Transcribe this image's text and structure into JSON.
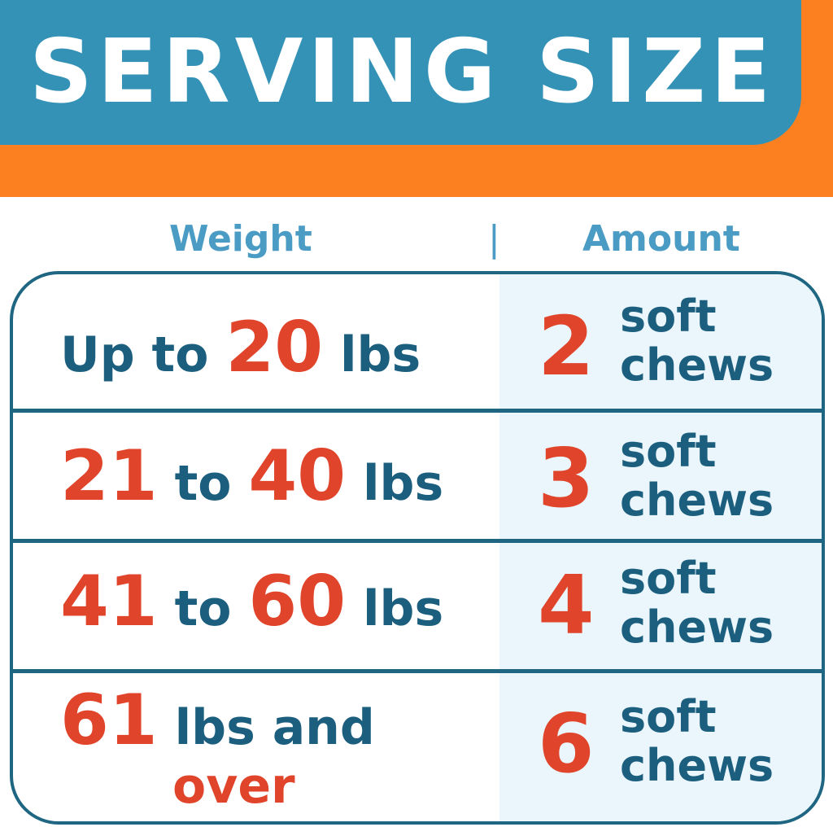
{
  "header": {
    "title": "SERVING SIZE"
  },
  "columns": {
    "weight": "Weight",
    "separator": "|",
    "amount": "Amount"
  },
  "rows": [
    {
      "prefix": "Up to",
      "from": "",
      "to_word": "",
      "to": "20",
      "suffix": "lbs",
      "extra": "",
      "amount": "2",
      "unit_line1": "soft",
      "unit_line2": "chews"
    },
    {
      "prefix": "",
      "from": "21",
      "to_word": "to",
      "to": "40",
      "suffix": "lbs",
      "extra": "",
      "amount": "3",
      "unit_line1": "soft",
      "unit_line2": "chews"
    },
    {
      "prefix": "",
      "from": "41",
      "to_word": "to",
      "to": "60",
      "suffix": "lbs",
      "extra": "",
      "amount": "4",
      "unit_line1": "soft",
      "unit_line2": "chews"
    },
    {
      "prefix": "",
      "from": "61",
      "to_word": "",
      "to": "",
      "suffix": "lbs and",
      "extra": "over",
      "amount": "6",
      "unit_line1": "soft",
      "unit_line2": "chews"
    }
  ],
  "colors": {
    "blue": "#3592b7",
    "orange": "#fd8020",
    "dark_text": "#1b5e7e",
    "red": "#e0442a"
  }
}
